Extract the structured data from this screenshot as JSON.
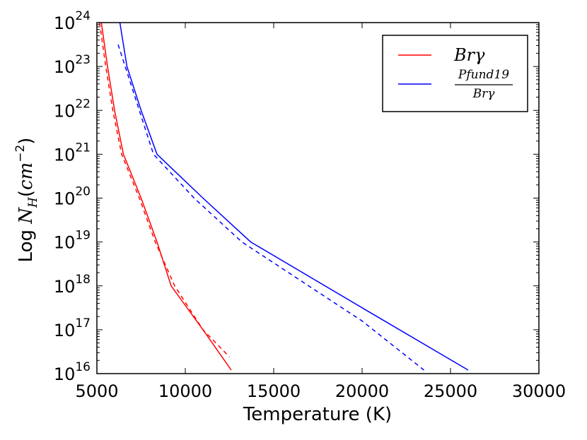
{
  "chart_data": {
    "type": "line",
    "title": "",
    "xlabel": "Temperature (K)",
    "ylabel": {
      "prefix": "Log ",
      "var": "N",
      "sub": "H",
      "open": "(",
      "unit": "cm",
      "exp": "−2",
      "close": ")"
    },
    "xlim": [
      5000,
      30000
    ],
    "ylim_log10": [
      16,
      24
    ],
    "x_ticks": [
      "5000",
      "10000",
      "15000",
      "20000",
      "25000",
      "30000"
    ],
    "y_ticks": [
      {
        "base": "10",
        "exp": "16"
      },
      {
        "base": "10",
        "exp": "17"
      },
      {
        "base": "10",
        "exp": "18"
      },
      {
        "base": "10",
        "exp": "19"
      },
      {
        "base": "10",
        "exp": "20"
      },
      {
        "base": "10",
        "exp": "21"
      },
      {
        "base": "10",
        "exp": "22"
      },
      {
        "base": "10",
        "exp": "23"
      },
      {
        "base": "10",
        "exp": "24"
      }
    ],
    "legend": {
      "position": "top-right",
      "entries": [
        {
          "color": "#ff0000",
          "label": "Brγ"
        },
        {
          "color": "#0000ff",
          "num": "Pfund19",
          "den": "Brγ"
        }
      ]
    },
    "series": [
      {
        "name": "Brγ (solid)",
        "color": "#ff0000",
        "dash": false,
        "points": [
          [
            5250,
            24.0
          ],
          [
            5600,
            23.0
          ],
          [
            6000,
            22.0
          ],
          [
            6500,
            21.0
          ],
          [
            7500,
            20.0
          ],
          [
            8400,
            19.0
          ],
          [
            9200,
            18.0
          ],
          [
            11000,
            17.0
          ],
          [
            12600,
            16.08
          ]
        ]
      },
      {
        "name": "Brγ (dashed)",
        "color": "#ff0000",
        "dash": true,
        "points": [
          [
            5150,
            24.0
          ],
          [
            5500,
            23.0
          ],
          [
            5900,
            22.0
          ],
          [
            6400,
            21.0
          ],
          [
            7400,
            20.0
          ],
          [
            8300,
            19.0
          ],
          [
            9400,
            18.0
          ],
          [
            11000,
            17.0
          ],
          [
            12500,
            16.38
          ]
        ]
      },
      {
        "name": "Pfund19/Brγ (solid)",
        "color": "#0000ff",
        "dash": false,
        "points": [
          [
            6300,
            24.0
          ],
          [
            6700,
            23.0
          ],
          [
            7500,
            22.0
          ],
          [
            8400,
            21.0
          ],
          [
            11000,
            20.0
          ],
          [
            13700,
            19.0
          ],
          [
            20000,
            17.5
          ],
          [
            26000,
            16.08
          ]
        ]
      },
      {
        "name": "Pfund19/Brγ (dashed)",
        "color": "#0000ff",
        "dash": true,
        "points": [
          [
            6200,
            23.5
          ],
          [
            6600,
            23.0
          ],
          [
            7400,
            22.0
          ],
          [
            8200,
            21.0
          ],
          [
            10500,
            20.0
          ],
          [
            13200,
            19.0
          ],
          [
            20000,
            17.2
          ],
          [
            23500,
            16.08
          ]
        ]
      }
    ]
  }
}
